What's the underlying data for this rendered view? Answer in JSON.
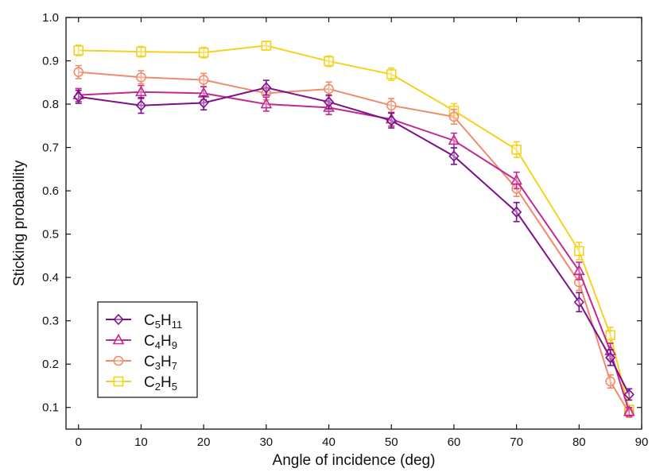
{
  "chart_data": {
    "type": "line",
    "xlabel": "Angle of incidence (deg)",
    "ylabel": "Sticking probability",
    "xlim": [
      -2,
      90
    ],
    "ylim": [
      0.05,
      1.0
    ],
    "xticks": [
      0,
      10,
      20,
      30,
      40,
      50,
      60,
      70,
      80,
      90
    ],
    "yticks": [
      0.1,
      0.2,
      0.3,
      0.4,
      0.5,
      0.6,
      0.7,
      0.8,
      0.9,
      1.0
    ],
    "ytick_labels": [
      "0.1",
      "0.2",
      "0.3",
      "0.4",
      "0.5",
      "0.6",
      "0.7",
      "0.8",
      "0.9",
      "1.0"
    ],
    "grid": false,
    "legend_position": "bottom-left",
    "x": [
      0,
      10,
      20,
      30,
      40,
      50,
      60,
      70,
      80,
      85,
      88
    ],
    "series": [
      {
        "name": "C5H11",
        "label_parts": [
          [
            "C",
            ""
          ],
          [
            "5",
            "sub"
          ],
          [
            "H",
            ""
          ],
          [
            "11",
            "sub"
          ]
        ],
        "color": "#7B0F8C",
        "marker": "diamond",
        "values": [
          0.817,
          0.797,
          0.803,
          0.838,
          0.805,
          0.762,
          0.68,
          0.551,
          0.343,
          0.215,
          0.13
        ],
        "errors": [
          0.015,
          0.018,
          0.016,
          0.017,
          0.016,
          0.017,
          0.019,
          0.022,
          0.022,
          0.018,
          0.013
        ]
      },
      {
        "name": "C4H9",
        "label_parts": [
          [
            "C",
            ""
          ],
          [
            "4",
            "sub"
          ],
          [
            "H",
            ""
          ],
          [
            "9",
            "sub"
          ]
        ],
        "color": "#C2288E",
        "marker": "triangle",
        "values": [
          0.821,
          0.828,
          0.825,
          0.8,
          0.792,
          0.765,
          0.716,
          0.624,
          0.415,
          0.23,
          0.09
        ],
        "errors": [
          0.015,
          0.015,
          0.015,
          0.016,
          0.016,
          0.016,
          0.017,
          0.019,
          0.02,
          0.018,
          0.01
        ]
      },
      {
        "name": "C3H7",
        "label_parts": [
          [
            "C",
            ""
          ],
          [
            "3",
            "sub"
          ],
          [
            "H",
            ""
          ],
          [
            "7",
            "sub"
          ]
        ],
        "color": "#F08A6A",
        "marker": "circle",
        "values": [
          0.874,
          0.862,
          0.856,
          0.825,
          0.835,
          0.797,
          0.771,
          0.605,
          0.389,
          0.16,
          0.087
        ],
        "errors": [
          0.015,
          0.015,
          0.015,
          0.015,
          0.016,
          0.016,
          0.017,
          0.018,
          0.019,
          0.015,
          0.01
        ]
      },
      {
        "name": "C2H5",
        "label_parts": [
          [
            "C",
            ""
          ],
          [
            "2",
            "sub"
          ],
          [
            "H",
            ""
          ],
          [
            "5",
            "sub"
          ]
        ],
        "color": "#F5D21E",
        "marker": "square",
        "values": [
          0.924,
          0.921,
          0.919,
          0.935,
          0.899,
          0.869,
          0.785,
          0.695,
          0.461,
          0.267,
          0.095
        ],
        "errors": [
          0.012,
          0.012,
          0.012,
          0.01,
          0.012,
          0.014,
          0.016,
          0.018,
          0.02,
          0.018,
          0.01
        ]
      }
    ]
  }
}
